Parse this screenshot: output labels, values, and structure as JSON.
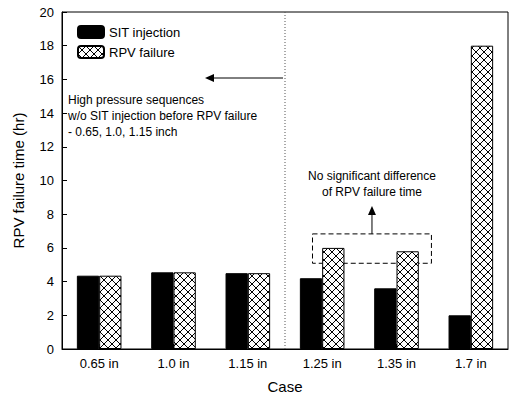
{
  "chart_data": {
    "type": "bar",
    "x_label": "Case",
    "y_label": "RPV failure time (hr)",
    "categories": [
      "0.65 in",
      "1.0 in",
      "1.15 in",
      "1.25 in",
      "1.35 in",
      "1.7 in"
    ],
    "series": [
      {
        "name": "SIT injection",
        "color": "#000000",
        "marker": "solid",
        "values": [
          4.35,
          4.55,
          4.5,
          4.2,
          3.6,
          2.0
        ]
      },
      {
        "name": "RPV failure",
        "color": "#000000",
        "marker": "crosshatch",
        "values": [
          4.35,
          4.55,
          4.5,
          6.0,
          5.8,
          18.0
        ]
      }
    ],
    "ylim": [
      0,
      20
    ],
    "yticks": [
      0,
      2,
      4,
      6,
      8,
      10,
      12,
      14,
      16,
      18,
      20
    ],
    "grid": false,
    "legend": "upper left",
    "annotations": [
      {
        "text": "High pressure sequences\nw/o SIT injection before RPV failure\n- 0.65, 1.0, 1.15 inch"
      },
      {
        "text": "No significant difference\nof RPV failure time"
      }
    ]
  }
}
